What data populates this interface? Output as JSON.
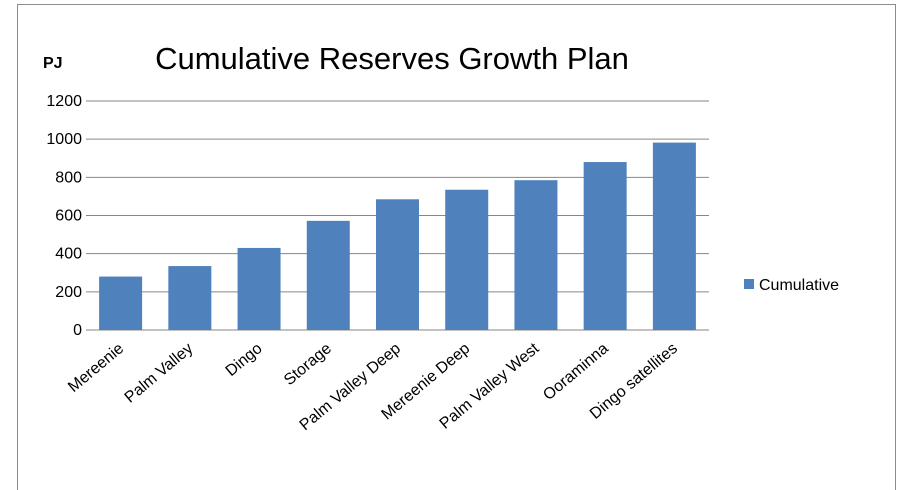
{
  "chart_data": {
    "type": "bar",
    "title": "Cumulative Reserves Growth Plan",
    "ylabel": "PJ",
    "xlabel": "",
    "categories": [
      "Mereenie",
      "Palm Valley",
      "Dingo",
      "Storage",
      "Palm Valley Deep",
      "Mereenie Deep",
      "Palm Valley West",
      "Ooraminna",
      "Dingo satellites"
    ],
    "series": [
      {
        "name": "Cumulative",
        "values": [
          280,
          335,
          430,
          572,
          685,
          735,
          785,
          880,
          982
        ],
        "color": "#4F81BD"
      }
    ],
    "ylim": [
      0,
      1200
    ],
    "yticks": [
      "0",
      "200",
      "400",
      "600",
      "800",
      "1000",
      "1200"
    ],
    "grid": true,
    "legend_position": "right"
  }
}
